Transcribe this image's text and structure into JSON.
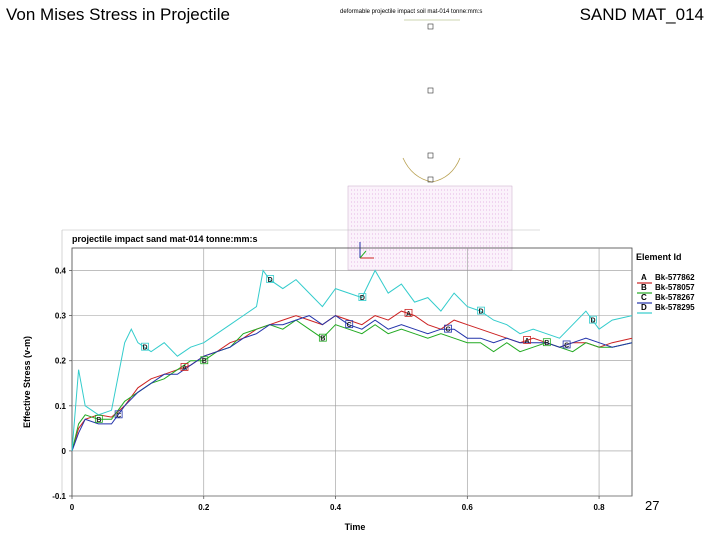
{
  "slide": {
    "title_left": "Von Mises Stress in Projectile",
    "title_right": "SAND MAT_014",
    "page_number": "27"
  },
  "inset": {
    "title": "deformable projectile impact soil mat-014 tonne:mm:s"
  },
  "chart_data": {
    "type": "line",
    "title": "projectile impact sand mat-014 tonne:mm:s",
    "xlabel": "Time",
    "ylabel": "Effective Stress (v-m)",
    "xlim": [
      0,
      0.85
    ],
    "ylim": [
      -0.1,
      0.45
    ],
    "xticks": [
      0,
      0.2,
      0.4,
      0.6,
      0.8
    ],
    "xtick_labels": [
      "0",
      "0.2",
      "0.4",
      "0.6",
      "0.8"
    ],
    "yticks": [
      -0.1,
      0,
      0.1,
      0.2,
      0.3,
      0.4
    ],
    "ytick_labels": [
      "-0.1",
      "0",
      "0.1",
      "0.2",
      "0.3",
      "0.4"
    ],
    "grid": true,
    "legend": {
      "title": "Element Id",
      "placement": "right"
    },
    "series": [
      {
        "name": "Bk-577862",
        "letter": "A",
        "color": "#cc2222",
        "x": [
          0,
          0.01,
          0.02,
          0.04,
          0.06,
          0.08,
          0.1,
          0.12,
          0.14,
          0.16,
          0.18,
          0.2,
          0.22,
          0.24,
          0.26,
          0.28,
          0.3,
          0.32,
          0.34,
          0.36,
          0.38,
          0.4,
          0.42,
          0.44,
          0.46,
          0.48,
          0.5,
          0.52,
          0.54,
          0.56,
          0.58,
          0.6,
          0.62,
          0.64,
          0.66,
          0.68,
          0.7,
          0.72,
          0.74,
          0.76,
          0.78,
          0.8,
          0.82,
          0.85
        ],
        "y": [
          0.0,
          0.05,
          0.07,
          0.08,
          0.075,
          0.1,
          0.14,
          0.16,
          0.17,
          0.18,
          0.19,
          0.21,
          0.22,
          0.24,
          0.25,
          0.27,
          0.28,
          0.29,
          0.3,
          0.29,
          0.28,
          0.3,
          0.29,
          0.28,
          0.3,
          0.29,
          0.31,
          0.3,
          0.28,
          0.27,
          0.29,
          0.28,
          0.27,
          0.26,
          0.25,
          0.24,
          0.25,
          0.24,
          0.23,
          0.24,
          0.24,
          0.23,
          0.24,
          0.25
        ]
      },
      {
        "name": "Bk-578057",
        "letter": "B",
        "color": "#22aa22",
        "x": [
          0,
          0.01,
          0.02,
          0.04,
          0.06,
          0.08,
          0.1,
          0.12,
          0.14,
          0.16,
          0.18,
          0.2,
          0.22,
          0.24,
          0.26,
          0.28,
          0.3,
          0.32,
          0.34,
          0.36,
          0.38,
          0.4,
          0.42,
          0.44,
          0.46,
          0.48,
          0.5,
          0.52,
          0.54,
          0.56,
          0.58,
          0.6,
          0.62,
          0.64,
          0.66,
          0.68,
          0.7,
          0.72,
          0.74,
          0.76,
          0.78,
          0.8,
          0.82,
          0.85
        ],
        "y": [
          0.0,
          0.06,
          0.08,
          0.07,
          0.07,
          0.11,
          0.13,
          0.15,
          0.16,
          0.18,
          0.2,
          0.2,
          0.22,
          0.23,
          0.26,
          0.27,
          0.28,
          0.27,
          0.29,
          0.27,
          0.25,
          0.28,
          0.27,
          0.26,
          0.28,
          0.26,
          0.27,
          0.26,
          0.25,
          0.26,
          0.25,
          0.24,
          0.24,
          0.22,
          0.24,
          0.22,
          0.23,
          0.24,
          0.23,
          0.22,
          0.24,
          0.23,
          0.23,
          0.24
        ]
      },
      {
        "name": "Bk-578267",
        "letter": "C",
        "color": "#2233aa",
        "x": [
          0,
          0.01,
          0.02,
          0.04,
          0.06,
          0.08,
          0.1,
          0.12,
          0.14,
          0.16,
          0.18,
          0.2,
          0.22,
          0.24,
          0.26,
          0.28,
          0.3,
          0.32,
          0.34,
          0.36,
          0.38,
          0.4,
          0.42,
          0.44,
          0.46,
          0.48,
          0.5,
          0.52,
          0.54,
          0.56,
          0.58,
          0.6,
          0.62,
          0.64,
          0.66,
          0.68,
          0.7,
          0.72,
          0.74,
          0.76,
          0.78,
          0.8,
          0.82,
          0.85
        ],
        "y": [
          0.0,
          0.04,
          0.07,
          0.06,
          0.06,
          0.1,
          0.13,
          0.15,
          0.17,
          0.17,
          0.19,
          0.21,
          0.22,
          0.23,
          0.25,
          0.26,
          0.28,
          0.28,
          0.29,
          0.3,
          0.28,
          0.3,
          0.28,
          0.27,
          0.29,
          0.27,
          0.28,
          0.27,
          0.26,
          0.27,
          0.27,
          0.25,
          0.25,
          0.24,
          0.25,
          0.24,
          0.24,
          0.24,
          0.23,
          0.24,
          0.25,
          0.24,
          0.23,
          0.24
        ]
      },
      {
        "name": "Bk-578295",
        "letter": "D",
        "color": "#33cccc",
        "x": [
          0,
          0.01,
          0.02,
          0.04,
          0.06,
          0.08,
          0.09,
          0.1,
          0.12,
          0.14,
          0.16,
          0.18,
          0.2,
          0.22,
          0.24,
          0.26,
          0.28,
          0.29,
          0.3,
          0.32,
          0.34,
          0.36,
          0.38,
          0.4,
          0.42,
          0.44,
          0.46,
          0.48,
          0.5,
          0.52,
          0.54,
          0.56,
          0.58,
          0.6,
          0.62,
          0.64,
          0.66,
          0.68,
          0.7,
          0.72,
          0.74,
          0.76,
          0.78,
          0.8,
          0.82,
          0.85
        ],
        "y": [
          0.0,
          0.18,
          0.1,
          0.08,
          0.09,
          0.24,
          0.27,
          0.24,
          0.22,
          0.24,
          0.21,
          0.23,
          0.24,
          0.26,
          0.28,
          0.3,
          0.32,
          0.4,
          0.38,
          0.36,
          0.38,
          0.35,
          0.32,
          0.36,
          0.35,
          0.34,
          0.4,
          0.35,
          0.37,
          0.33,
          0.34,
          0.31,
          0.35,
          0.32,
          0.31,
          0.29,
          0.28,
          0.26,
          0.27,
          0.26,
          0.25,
          0.28,
          0.31,
          0.27,
          0.29,
          0.3
        ]
      }
    ]
  }
}
